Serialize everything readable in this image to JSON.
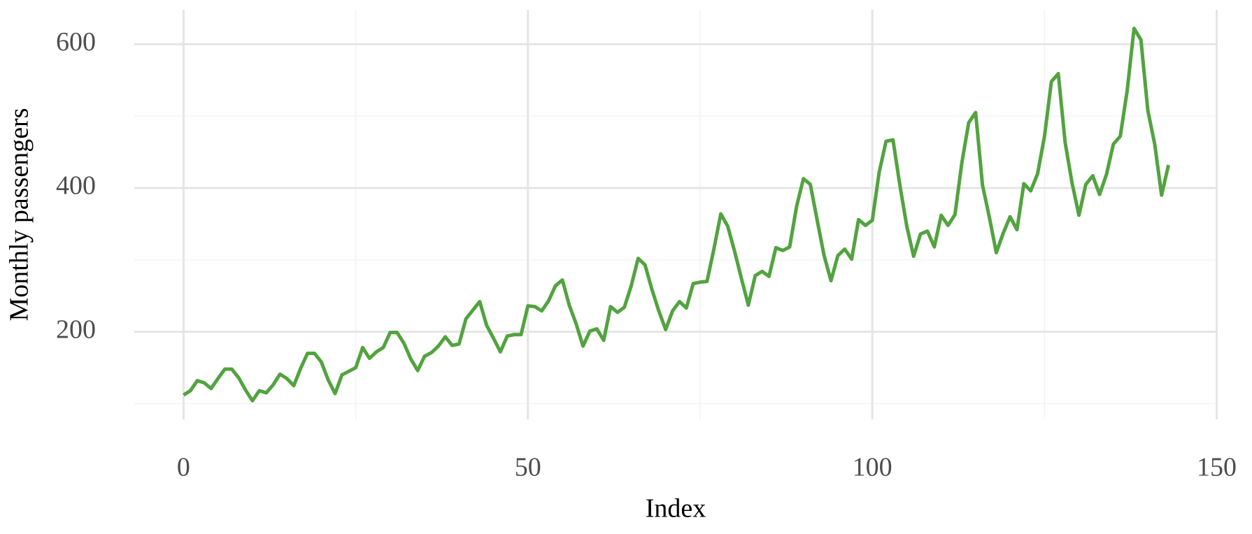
{
  "chart_data": {
    "type": "line",
    "x_label": "Index",
    "y_label": "Monthly passengers",
    "x": [
      0,
      1,
      2,
      3,
      4,
      5,
      6,
      7,
      8,
      9,
      10,
      11,
      12,
      13,
      14,
      15,
      16,
      17,
      18,
      19,
      20,
      21,
      22,
      23,
      24,
      25,
      26,
      27,
      28,
      29,
      30,
      31,
      32,
      33,
      34,
      35,
      36,
      37,
      38,
      39,
      40,
      41,
      42,
      43,
      44,
      45,
      46,
      47,
      48,
      49,
      50,
      51,
      52,
      53,
      54,
      55,
      56,
      57,
      58,
      59,
      60,
      61,
      62,
      63,
      64,
      65,
      66,
      67,
      68,
      69,
      70,
      71,
      72,
      73,
      74,
      75,
      76,
      77,
      78,
      79,
      80,
      81,
      82,
      83,
      84,
      85,
      86,
      87,
      88,
      89,
      90,
      91,
      92,
      93,
      94,
      95,
      96,
      97,
      98,
      99,
      100,
      101,
      102,
      103,
      104,
      105,
      106,
      107,
      108,
      109,
      110,
      111,
      112,
      113,
      114,
      115,
      116,
      117,
      118,
      119,
      120,
      121,
      122,
      123,
      124,
      125,
      126,
      127,
      128,
      129,
      130,
      131,
      132,
      133,
      134,
      135,
      136,
      137,
      138,
      139,
      140,
      141,
      142,
      143
    ],
    "series": [
      {
        "name": "Monthly passengers",
        "color": "#52a33f",
        "values": [
          112,
          118,
          132,
          129,
          121,
          135,
          148,
          148,
          136,
          119,
          104,
          118,
          115,
          126,
          141,
          135,
          125,
          149,
          170,
          170,
          158,
          133,
          114,
          140,
          145,
          150,
          178,
          163,
          172,
          178,
          199,
          199,
          184,
          162,
          146,
          166,
          171,
          180,
          193,
          181,
          183,
          218,
          230,
          242,
          209,
          191,
          172,
          194,
          196,
          196,
          236,
          235,
          229,
          243,
          264,
          272,
          237,
          211,
          180,
          201,
          204,
          188,
          235,
          227,
          234,
          264,
          302,
          293,
          259,
          229,
          203,
          229,
          242,
          233,
          267,
          269,
          270,
          315,
          364,
          347,
          312,
          274,
          237,
          278,
          284,
          277,
          317,
          313,
          318,
          374,
          413,
          405,
          355,
          306,
          271,
          306,
          315,
          301,
          356,
          348,
          355,
          422,
          465,
          467,
          404,
          347,
          305,
          336,
          340,
          318,
          362,
          348,
          363,
          435,
          491,
          505,
          404,
          359,
          310,
          337,
          360,
          342,
          406,
          396,
          420,
          472,
          548,
          559,
          463,
          407,
          362,
          405,
          417,
          391,
          419,
          461,
          472,
          535,
          622,
          606,
          508,
          461,
          390,
          432
        ]
      }
    ],
    "xlim": [
      -7.15,
      150.15
    ],
    "ylim": [
      78.1,
      647.9
    ],
    "xticks": [
      0,
      50,
      100,
      150
    ],
    "yticks": [
      200,
      400,
      600
    ],
    "xminor": [
      25,
      75,
      125
    ],
    "yminor": [
      100,
      300,
      500
    ],
    "grid": true
  }
}
